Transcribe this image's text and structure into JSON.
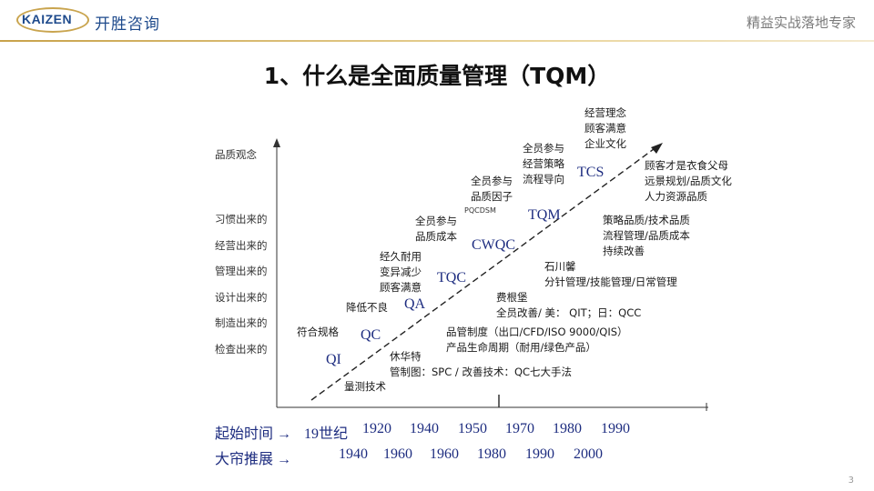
{
  "header": {
    "logo_text": "KAIZEN",
    "logo_cn": "开胜咨询",
    "tagline": "精益实战落地专家"
  },
  "title": "1、什么是全面质量管理（TQM）",
  "y_axis": {
    "top_label": "品质观念",
    "labels": [
      "习惯出来的",
      "经营出来的",
      "管理出来的",
      "设计出来的",
      "制造出来的",
      "检查出来的"
    ]
  },
  "stages": [
    "QI",
    "QC",
    "QA",
    "TQC",
    "CWQC",
    "TQM",
    "TCS"
  ],
  "notes": {
    "qi_upper": "符合规格",
    "qi_lower": "量测技术",
    "qa_upper": "降低不良",
    "tqc_upper": [
      "经久耐用",
      "变异减少",
      "顾客满意"
    ],
    "cwqc_upper": [
      "全员参与",
      "品质成本"
    ],
    "tqm_upper": [
      "全员参与",
      "品质因子"
    ],
    "tqm_small": "PQCDSM",
    "tcs_upper1": [
      "全员参与",
      "经营策略",
      "流程导向"
    ],
    "tcs_upper2": [
      "经营理念",
      "顾客满意",
      "企业文化"
    ],
    "right_1": [
      "顾客才是衣食父母",
      "远景规划/品质文化",
      "人力资源品质"
    ],
    "right_2": [
      "策略品质/技术品质",
      "流程管理/品质成本",
      "持续改善"
    ],
    "right_3": [
      "石川馨",
      "分针管理/技能管理/日常管理"
    ],
    "right_4": [
      "费根堡",
      "全员改善/ 美： QIT；日：QCC"
    ],
    "right_5": [
      "品管制度（出口/CFD/ISO 9000/QIS）",
      "产品生命周期（耐用/绿色产品）"
    ],
    "right_6": [
      "休华特",
      "管制图：SPC / 改善技术：QC七大手法"
    ]
  },
  "timeline": {
    "start_label": "起始时间 →",
    "start_values": [
      "19世纪",
      "1920",
      "1940",
      "1950",
      "1970",
      "1980",
      "1990"
    ],
    "boom_label": "大帘推展 →",
    "boom_values": [
      "1940",
      "1960",
      "1960",
      "1980",
      "1990",
      "2000"
    ]
  },
  "page_number": "3"
}
